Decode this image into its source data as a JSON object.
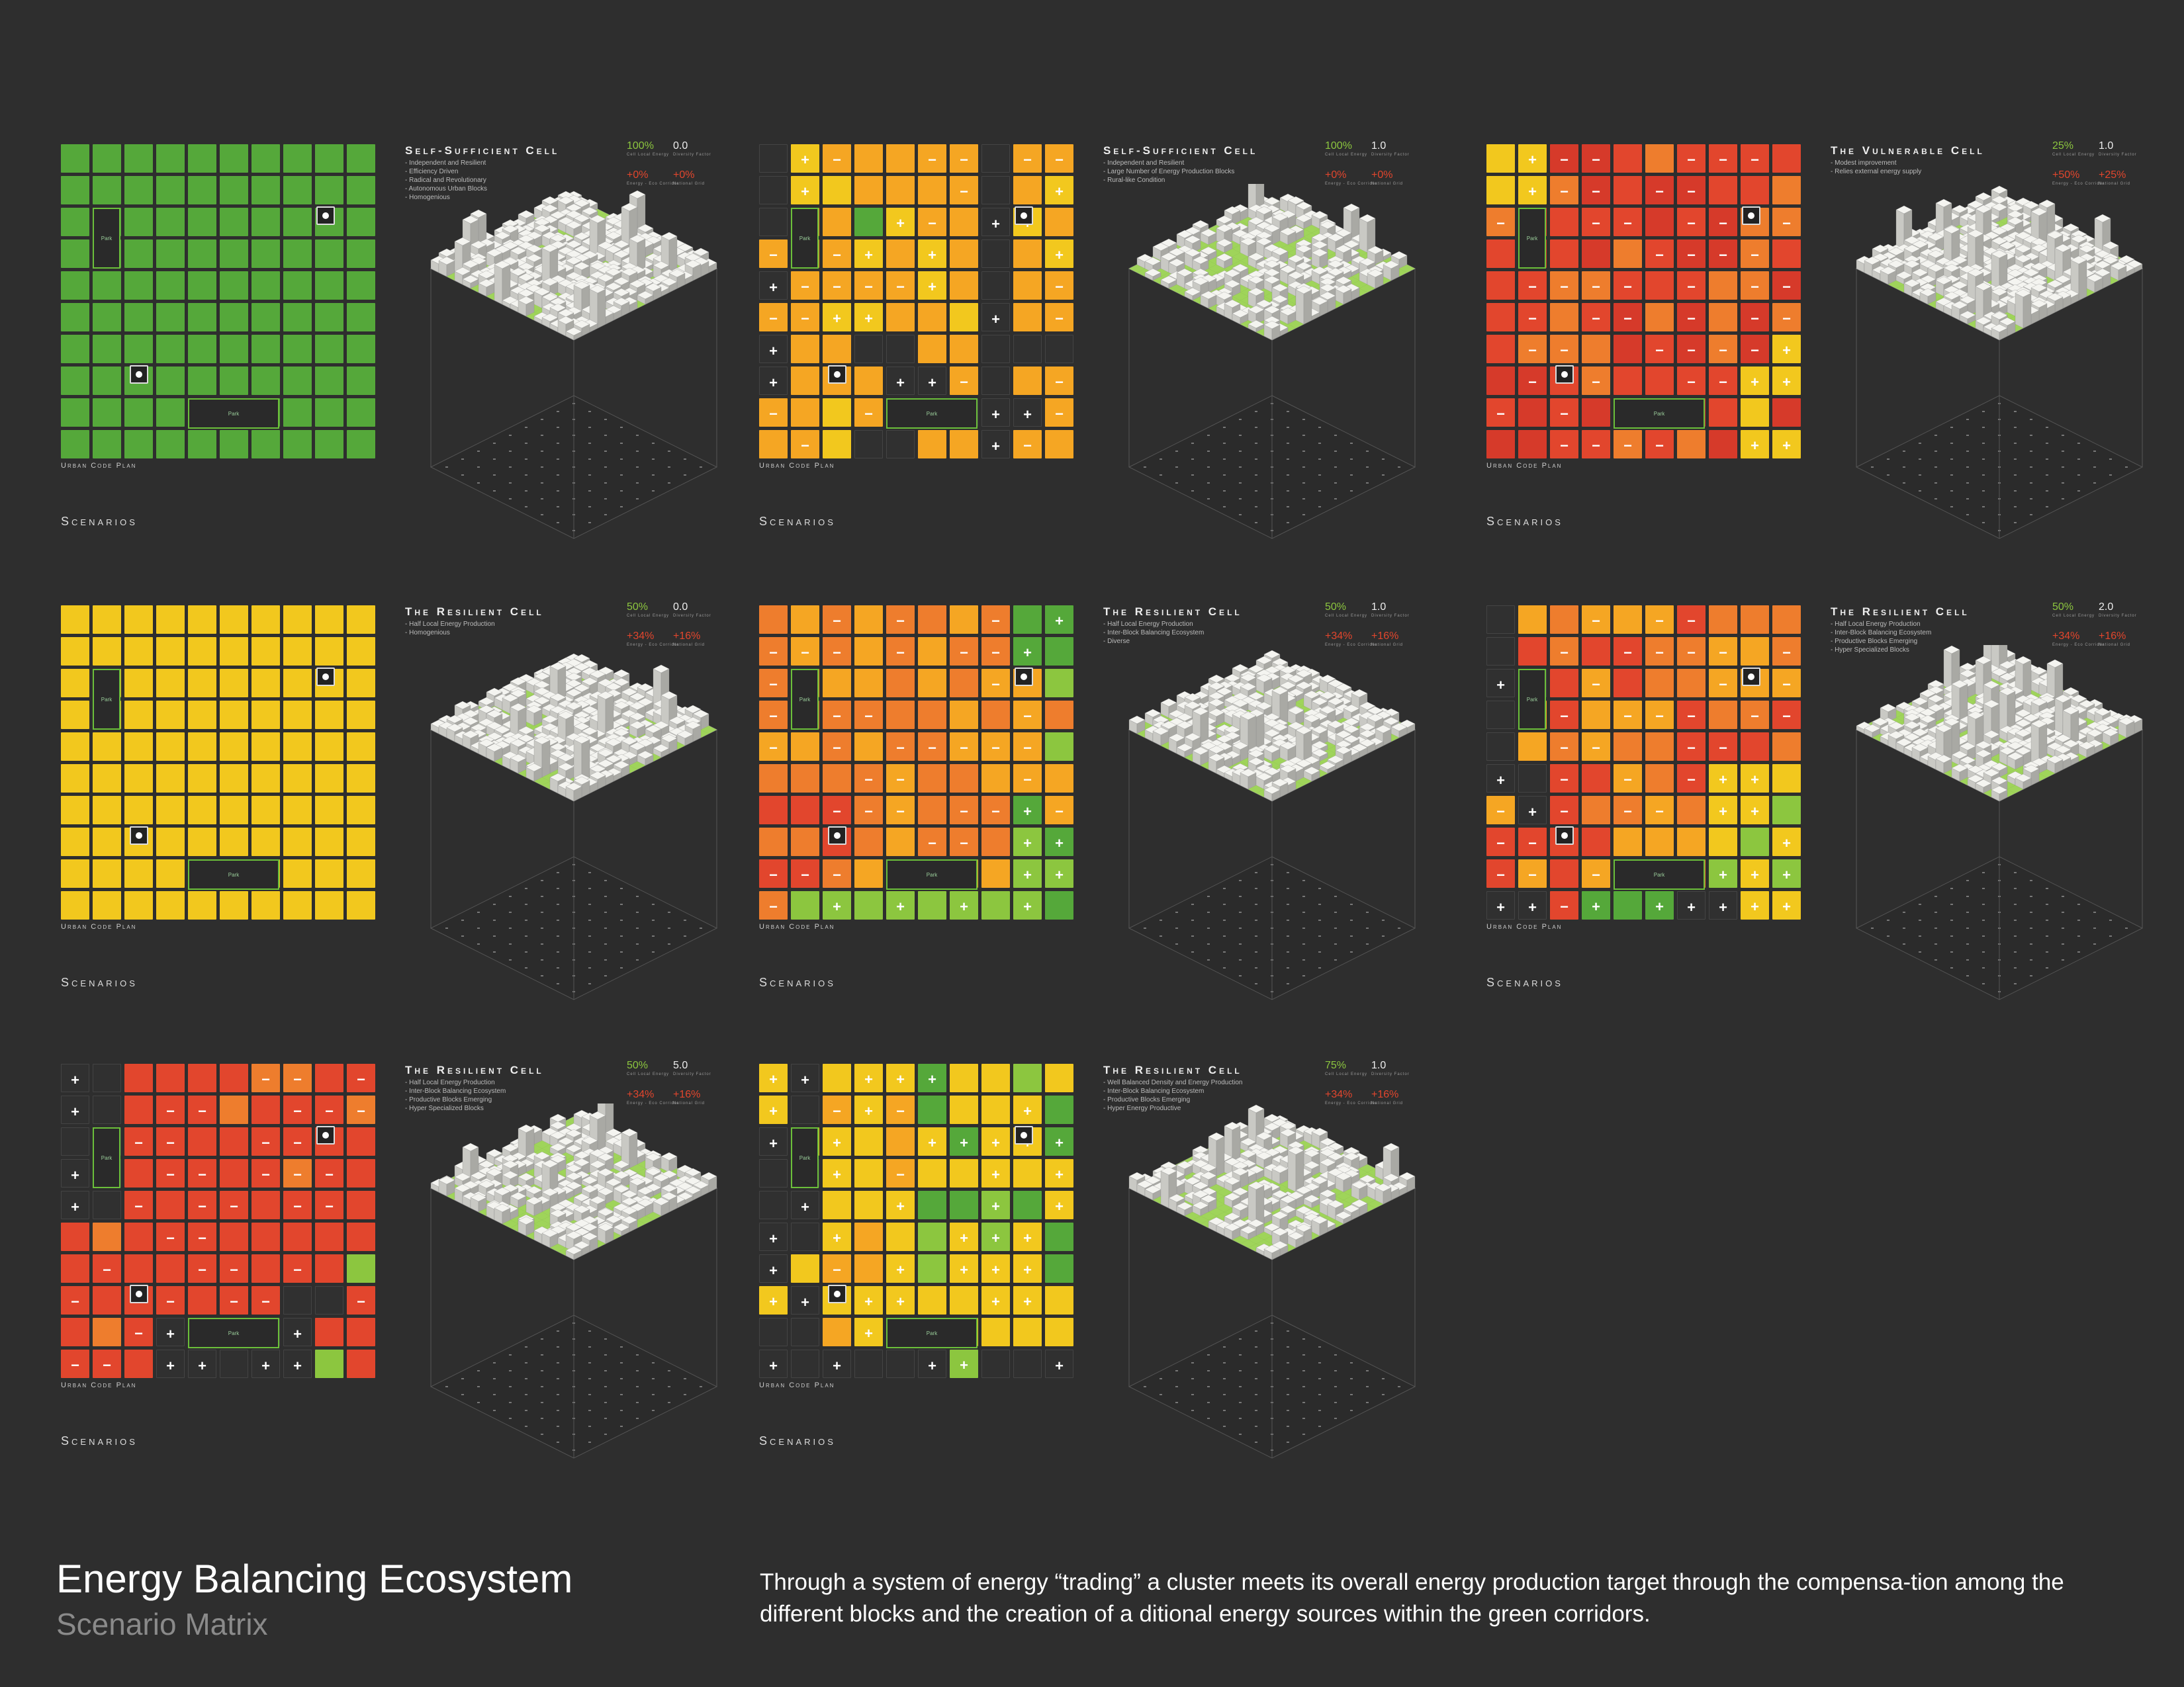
{
  "footer": {
    "title": "Energy Balancing Ecosystem",
    "subtitle": "Scenario Matrix",
    "description": "Through a system of energy “trading” a cluster meets its overall energy production target through the compensa-tion among the different blocks and the creation of a ditional energy sources within the green corridors."
  },
  "labels": {
    "urban_code_plan": "Urban Code Plan",
    "scenarios": "Scenarios",
    "park": "Park",
    "cell_local_energy": "Cell Local Energy",
    "diversity_factor": "Diversity Factor",
    "energy_eco_corridor": "Energy - Eco Corridor",
    "national_grid": "National Grid"
  },
  "colors": {
    "background": "#2e2e2e",
    "green": "#55a83a",
    "light_green": "#8cc63f",
    "yellow": "#f2c81e",
    "orange": "#ee7d2d",
    "red": "#e2462d",
    "dark_cell": "#303030"
  },
  "panels": [
    {
      "title": "Self-Sufficient Cell",
      "bullets": [
        "- Independent and Resilient",
        "- Efficiency Driven",
        "- Radical and Revolutionary",
        "- Autonomous Urban Blocks",
        "- Homogenious"
      ],
      "cell_local_energy": "100%",
      "diversity_factor": "0.0",
      "energy_eco_corridor": "+0%",
      "national_grid": "+0%",
      "palette": "allgreen"
    },
    {
      "title": "Self-Sufficient Cell",
      "bullets": [
        "- Independent and Resilient",
        "- Large Number of Energy Production Blocks",
        "- Rural-like Condition"
      ],
      "cell_local_energy": "100%",
      "diversity_factor": "1.0",
      "energy_eco_corridor": "+0%",
      "national_grid": "+0%",
      "palette": "mixyellow"
    },
    {
      "title": "The Vulnerable Cell",
      "bullets": [
        "- Modest improvement",
        "- Relies external energy supply"
      ],
      "cell_local_energy": "25%",
      "diversity_factor": "1.0",
      "energy_eco_corridor": "+50%",
      "national_grid": "+25%",
      "palette": "mostlyred"
    },
    {
      "title": "The Resilient Cell",
      "bullets": [
        "- Half Local Energy Production",
        "- Homogenious"
      ],
      "cell_local_energy": "50%",
      "diversity_factor": "0.0",
      "energy_eco_corridor": "+34%",
      "national_grid": "+16%",
      "palette": "allyellow"
    },
    {
      "title": "The Resilient Cell",
      "bullets": [
        "- Half Local Energy Production",
        "- Inter-Block Balancing Ecosystem",
        "- Diverse"
      ],
      "cell_local_energy": "50%",
      "diversity_factor": "1.0",
      "energy_eco_corridor": "+34%",
      "national_grid": "+16%",
      "palette": "orangegreen"
    },
    {
      "title": "The Resilient Cell",
      "bullets": [
        "- Half Local Energy Production",
        "- Inter-Block Balancing Ecosystem",
        "- Productive Blocks Emerging",
        "- Hyper Specialized Blocks"
      ],
      "cell_local_energy": "50%",
      "diversity_factor": "2.0",
      "energy_eco_corridor": "+34%",
      "national_grid": "+16%",
      "palette": "orangered"
    },
    {
      "title": "The Resilient Cell",
      "bullets": [
        "- Half Local Energy Production",
        "- Inter-Block Balancing Ecosystem",
        "- Productive Blocks Emerging",
        "- Hyper Specialized Blocks"
      ],
      "cell_local_energy": "50%",
      "diversity_factor": "5.0",
      "energy_eco_corridor": "+34%",
      "national_grid": "+16%",
      "palette": "redmix"
    },
    {
      "title": "The Resilient Cell",
      "bullets": [
        "- Well Balanced Density and Energy Production",
        "- Inter-Block Balancing Ecosystem",
        "- Productive Blocks Emerging",
        "- Hyper Energy Productive"
      ],
      "cell_local_energy": "75%",
      "diversity_factor": "1.0",
      "energy_eco_corridor": "+34%",
      "national_grid": "+16%",
      "palette": "yellowgreen"
    }
  ]
}
